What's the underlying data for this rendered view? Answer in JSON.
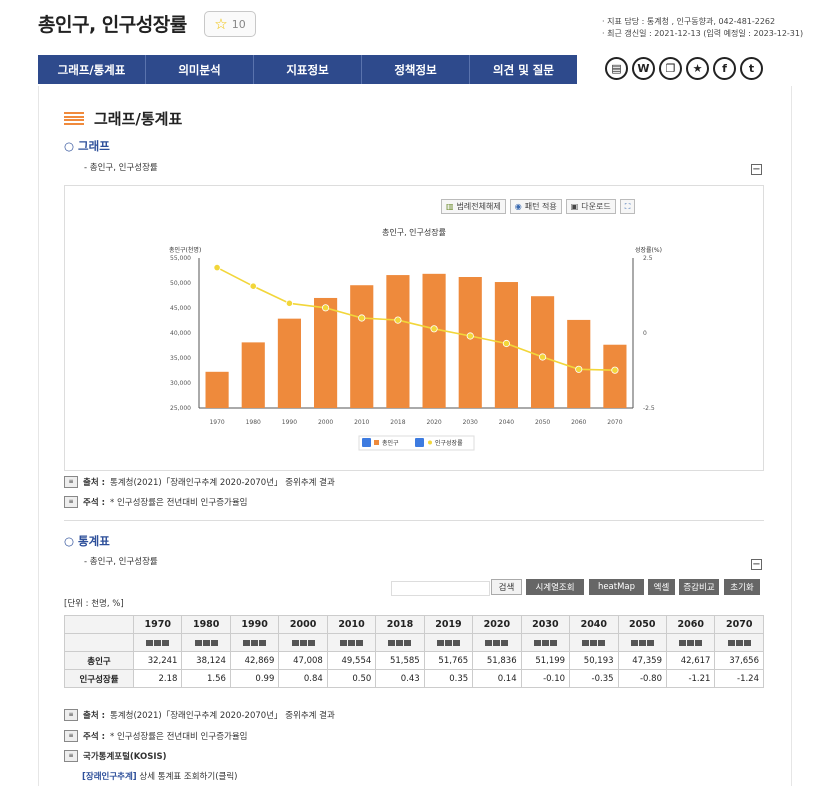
{
  "header": {
    "title": "총인구, 인구성장률",
    "favorite_count": "10",
    "meta_line1": "· 지표 담당 : 통계청 , 인구동향과, 042-481-2262",
    "meta_line2": "· 최근 갱신일 : 2021-12-13 (입력 예정일 : 2023-12-31)"
  },
  "nav": {
    "tabs": [
      "그래프/통계표",
      "의미분석",
      "지표정보",
      "정책정보",
      "의견 및 질문"
    ]
  },
  "share_icons": [
    "print-icon",
    "word-icon",
    "copy-icon",
    "star-icon",
    "facebook-icon",
    "twitter-icon"
  ],
  "section": {
    "title": "그래프/통계표"
  },
  "graph": {
    "heading": "○ 그래프",
    "subheading": "- 총인구, 인구성장률",
    "toolbar": [
      "범례전체해제",
      "패턴 적용",
      "다운로드"
    ]
  },
  "chart_data": {
    "type": "bar",
    "title": "총인구, 인구성장률",
    "categories": [
      "1970",
      "1980",
      "1990",
      "2000",
      "2010",
      "2018",
      "2020",
      "2030",
      "2040",
      "2050",
      "2060",
      "2070"
    ],
    "series": [
      {
        "name": "총인구",
        "type": "bar",
        "axis": "left",
        "values": [
          32241,
          38124,
          42869,
          47008,
          49554,
          51585,
          51836,
          51199,
          50193,
          47359,
          42617,
          37656
        ]
      },
      {
        "name": "인구성장률",
        "type": "line",
        "axis": "right",
        "values": [
          2.18,
          1.56,
          0.99,
          0.84,
          0.5,
          0.43,
          0.14,
          -0.1,
          -0.35,
          -0.8,
          -1.21,
          -1.24
        ]
      }
    ],
    "ylabel_left": "총인구(천명)",
    "ylabel_right": "성장률(%)",
    "ylim_left": [
      25000,
      55000
    ],
    "yticks_left": [
      "55,000",
      "50,000",
      "45,000",
      "40,000",
      "35,000",
      "30,000",
      "25,000"
    ],
    "ylim_right": [
      -2.5,
      2.5
    ],
    "yticks_right": [
      "2.5",
      "0",
      "-2.5"
    ],
    "legend_position": "bottom",
    "colors": {
      "bar": "#ee8a3c",
      "line": "#f2d63a"
    }
  },
  "notes": {
    "source_label": "출처 :",
    "source_text": "통계청(2021)「장래인구추계 2020-2070년」 중위추계 결과",
    "footnote_label": "주석 :",
    "footnote_text": "* 인구성장률은 전년대비 인구증가율임",
    "portal_label": "국가통계포털(KOSIS)",
    "link_text": "[장래인구추계]",
    "link_suffix": "상세 통계표 조회하기(클릭)"
  },
  "table_section": {
    "heading": "○ 통계표",
    "subheading": "- 총인구, 인구성장률",
    "buttons": [
      "검색",
      "시계열조회",
      "heatMap",
      "엑셀",
      "증감비교",
      "초기화"
    ],
    "unit": "[단위 : 천명, %]",
    "years": [
      "1970",
      "1980",
      "1990",
      "2000",
      "2010",
      "2018",
      "2019",
      "2020",
      "2030",
      "2040",
      "2050",
      "2060",
      "2070"
    ],
    "rows": [
      {
        "label": "총인구",
        "values": [
          "32,241",
          "38,124",
          "42,869",
          "47,008",
          "49,554",
          "51,585",
          "51,765",
          "51,836",
          "51,199",
          "50,193",
          "47,359",
          "42,617",
          "37,656"
        ]
      },
      {
        "label": "인구성장률",
        "values": [
          "2.18",
          "1.56",
          "0.99",
          "0.84",
          "0.50",
          "0.43",
          "0.35",
          "0.14",
          "-0.10",
          "-0.35",
          "-0.80",
          "-1.21",
          "-1.24"
        ]
      }
    ]
  }
}
